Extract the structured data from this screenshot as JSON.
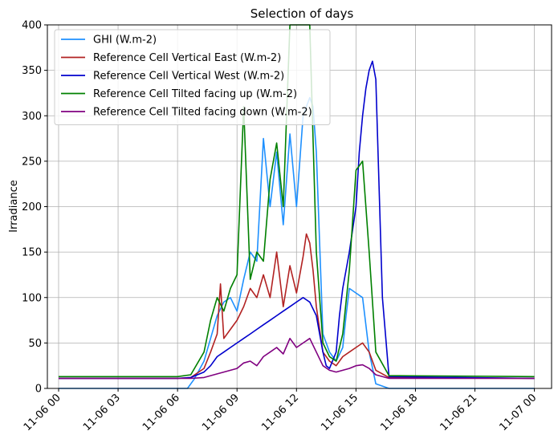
{
  "chart_data": {
    "type": "line",
    "title": "Selection of days",
    "xlabel": "",
    "ylabel": "Irradiance",
    "ylim": [
      0,
      400
    ],
    "xlim_hours": [
      -1.7,
      74.6
    ],
    "grid": true,
    "legend_position": "top-left",
    "x_ticks": [
      {
        "hour": 0,
        "label": "11-06 00"
      },
      {
        "hour": 9,
        "label": "11-06 03"
      },
      {
        "hour": 18,
        "label": "11-06 06"
      },
      {
        "hour": 27,
        "label": "11-06 09"
      },
      {
        "hour": 36,
        "label": "11-06 12"
      },
      {
        "hour": 45,
        "label": "11-06 15"
      },
      {
        "hour": 54,
        "label": "11-06 18"
      },
      {
        "hour": 63,
        "label": "11-06 21"
      },
      {
        "hour": 72,
        "label": "11-07 00"
      }
    ],
    "y_ticks": [
      0,
      50,
      100,
      150,
      200,
      250,
      300,
      350,
      400
    ],
    "series": [
      {
        "name": "GHI (W.m-2)",
        "color": "#1e90ff",
        "x": [
          0,
          14,
          19.5,
          20.5,
          22,
          23,
          24,
          25,
          26,
          27,
          28,
          29,
          30,
          31,
          32,
          33,
          34,
          35,
          36,
          37,
          37.5,
          38,
          38.5,
          39,
          40,
          41,
          42,
          43,
          43.5,
          44,
          45,
          46,
          47,
          48,
          50,
          72
        ],
        "y": [
          0,
          0,
          0,
          10,
          30,
          55,
          80,
          95,
          100,
          85,
          120,
          150,
          140,
          275,
          200,
          260,
          180,
          280,
          200,
          300,
          310,
          320,
          310,
          260,
          60,
          40,
          30,
          45,
          80,
          110,
          105,
          100,
          40,
          5,
          0,
          0
        ]
      },
      {
        "name": "Reference Cell Vertical East (W.m-2)",
        "color": "#b22222",
        "x": [
          0,
          18,
          20,
          22,
          23,
          24,
          24.5,
          25,
          26,
          27,
          28,
          29,
          30,
          31,
          32,
          33,
          34,
          35,
          36,
          37,
          37.5,
          38,
          38.5,
          39,
          40,
          41,
          42,
          43,
          44,
          45,
          46,
          47,
          48,
          50,
          72
        ],
        "y": [
          11,
          11,
          12,
          22,
          40,
          60,
          115,
          55,
          65,
          75,
          90,
          110,
          100,
          125,
          100,
          150,
          90,
          135,
          105,
          145,
          170,
          160,
          130,
          90,
          40,
          30,
          25,
          35,
          40,
          45,
          50,
          40,
          20,
          12,
          11
        ]
      },
      {
        "name": "Reference Cell Vertical West (W.m-2)",
        "color": "#0000cd",
        "x": [
          0,
          18,
          20,
          22,
          23,
          24,
          25,
          26,
          27,
          28,
          29,
          30,
          31,
          32,
          33,
          34,
          35,
          36,
          37,
          38,
          39,
          40,
          40.5,
          41,
          42,
          42.5,
          43,
          44,
          45,
          45.5,
          46,
          46.5,
          47,
          47.5,
          48,
          49,
          50,
          72
        ],
        "y": [
          11,
          11,
          12,
          18,
          25,
          35,
          40,
          45,
          50,
          55,
          60,
          65,
          70,
          75,
          80,
          85,
          90,
          95,
          100,
          95,
          80,
          40,
          25,
          22,
          40,
          80,
          110,
          150,
          200,
          260,
          300,
          330,
          350,
          360,
          340,
          100,
          13,
          11
        ]
      },
      {
        "name": "Reference Cell Tilted facing up (W.m-2)",
        "color": "#008000",
        "x": [
          0,
          18,
          20,
          22,
          23,
          24,
          25,
          26,
          27,
          28,
          29,
          30,
          31,
          32,
          33,
          34,
          35,
          36,
          37,
          38,
          39,
          40,
          41,
          42,
          43,
          44,
          45,
          46,
          47,
          48,
          50,
          72
        ],
        "y": [
          13,
          13,
          15,
          40,
          75,
          100,
          85,
          110,
          125,
          310,
          120,
          150,
          140,
          230,
          270,
          200,
          400,
          400,
          400,
          400,
          150,
          50,
          35,
          30,
          60,
          130,
          240,
          250,
          150,
          40,
          14,
          13
        ]
      },
      {
        "name": "Reference Cell Tilted facing down (W.m-2)",
        "color": "#800080",
        "x": [
          0,
          18,
          20,
          22,
          23,
          24,
          25,
          26,
          27,
          28,
          29,
          30,
          31,
          32,
          33,
          34,
          35,
          36,
          37,
          38,
          39,
          40,
          41,
          42,
          43,
          44,
          45,
          46,
          47,
          48,
          50,
          72
        ],
        "y": [
          11,
          11,
          11,
          12,
          14,
          16,
          18,
          20,
          22,
          28,
          30,
          25,
          35,
          40,
          45,
          38,
          55,
          45,
          50,
          55,
          40,
          25,
          20,
          18,
          20,
          22,
          25,
          26,
          22,
          15,
          11,
          11
        ]
      }
    ]
  }
}
